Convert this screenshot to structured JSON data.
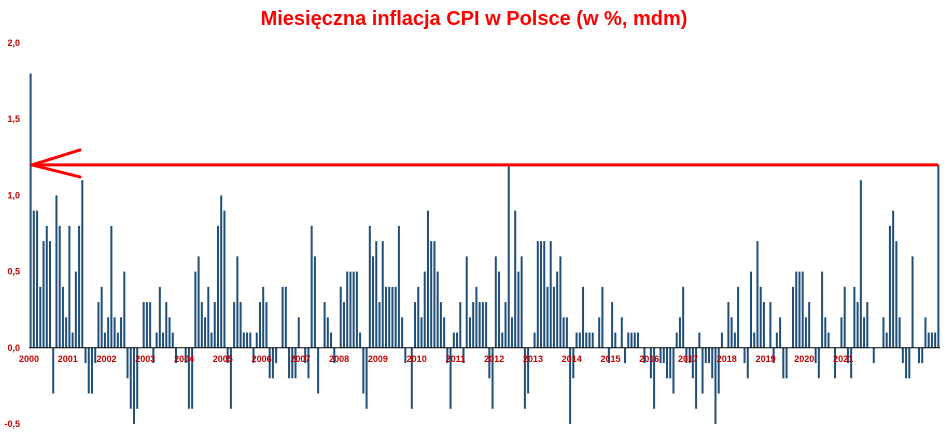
{
  "colors": {
    "bar": "#1F4E79",
    "title": "#FF0000",
    "tick_labels": "#C00000",
    "arrow": "#FF0000",
    "axis": "#000000"
  },
  "chart_data": {
    "type": "bar",
    "title": "Miesięczna inflacja CPI w Polsce (w %, mdm)",
    "xlabel": "",
    "ylabel": "",
    "ylim": [
      -0.5,
      2.0
    ],
    "y_ticks": [
      "2,0",
      "1,5",
      "1,0",
      "0,5",
      "0,0",
      "-0,5"
    ],
    "y_tick_values": [
      2.0,
      1.5,
      1.0,
      0.5,
      0.0,
      -0.5
    ],
    "x_tick_labels": [
      "2000",
      "2001",
      "2002",
      "2003",
      "2004",
      "2005",
      "2006",
      "2007",
      "2008",
      "2009",
      "2010",
      "2011",
      "2012",
      "2013",
      "2014",
      "2015",
      "2016",
      "2017",
      "2018",
      "2019",
      "2020",
      "2021"
    ],
    "grid": false,
    "legend": "none",
    "annotation": {
      "type": "horizontal-arrow",
      "y_value": 1.2
    },
    "series": [
      {
        "values": [
          1.8,
          0.9,
          0.9,
          0.4,
          0.7,
          0.8,
          0.7,
          -0.3,
          1.0,
          0.8,
          0.4,
          0.2,
          0.8,
          0.1,
          0.5,
          0.8,
          1.1,
          -0.1,
          -0.3,
          -0.3,
          -0.1,
          0.3,
          0.4,
          0.1,
          0.2,
          0.8,
          0.2,
          0.1,
          0.2,
          0.5,
          -0.2,
          -0.4,
          -0.5,
          -0.4,
          0.0,
          0.3,
          0.3,
          0.3,
          -0.1,
          0.1,
          0.4,
          0.1,
          0.3,
          0.2,
          0.1,
          -0.1,
          0.0,
          0.0,
          -0.1,
          -0.4,
          -0.4,
          0.5,
          0.6,
          0.3,
          0.2,
          0.4,
          0.1,
          0.3,
          0.8,
          1.0,
          0.9,
          -0.1,
          -0.4,
          0.3,
          0.6,
          0.3,
          0.1,
          0.1,
          0.1,
          -0.1,
          0.1,
          0.3,
          0.4,
          0.3,
          -0.2,
          -0.2,
          -0.1,
          0.0,
          0.4,
          0.4,
          -0.2,
          -0.2,
          -0.2,
          0.2,
          0.0,
          -0.1,
          -0.2,
          0.8,
          0.6,
          -0.3,
          0.0,
          0.3,
          0.2,
          0.1,
          -0.1,
          0.0,
          0.4,
          0.3,
          0.5,
          0.5,
          0.5,
          0.5,
          0.1,
          -0.3,
          -0.4,
          0.8,
          0.6,
          0.7,
          0.3,
          0.7,
          0.4,
          0.4,
          0.4,
          0.4,
          0.8,
          0.2,
          -0.1,
          0.0,
          -0.4,
          0.3,
          0.4,
          0.2,
          0.5,
          0.9,
          0.7,
          0.7,
          0.5,
          0.3,
          0.2,
          -0.1,
          -0.4,
          0.1,
          0.1,
          0.3,
          -0.1,
          0.6,
          0.2,
          0.3,
          0.4,
          0.3,
          0.3,
          0.3,
          -0.2,
          -0.4,
          0.6,
          0.5,
          0.1,
          0.3,
          1.2,
          0.2,
          0.9,
          0.5,
          0.6,
          -0.4,
          -0.3,
          0.0,
          0.1,
          0.7,
          0.7,
          0.7,
          0.4,
          0.7,
          0.4,
          0.5,
          0.6,
          0.2,
          0.2,
          -0.5,
          -0.2,
          0.1,
          0.1,
          0.4,
          0.1,
          0.1,
          0.1,
          0.0,
          0.2,
          0.4,
          0.0,
          -0.1,
          0.3,
          0.1,
          0.0,
          0.2,
          -0.1,
          0.1,
          0.1,
          0.1,
          0.1,
          0.0,
          -0.1,
          0.0,
          -0.2,
          -0.4,
          0.0,
          -0.1,
          -0.1,
          -0.2,
          -0.2,
          -0.3,
          0.1,
          0.2,
          0.4,
          -0.1,
          -0.1,
          -0.2,
          -0.4,
          0.1,
          -0.3,
          -0.1,
          -0.1,
          -0.2,
          -0.5,
          -0.3,
          0.1,
          0.0,
          0.3,
          0.2,
          0.1,
          0.4,
          0.0,
          -0.1,
          -0.2,
          0.5,
          0.1,
          0.7,
          0.4,
          0.3,
          0.0,
          0.3,
          -0.1,
          0.1,
          0.2,
          -0.2,
          -0.2,
          0.0,
          0.4,
          0.5,
          0.5,
          0.5,
          0.2,
          0.3,
          0.0,
          -0.1,
          -0.2,
          0.5,
          0.2,
          0.1,
          0.0,
          -0.2,
          0.0,
          0.2,
          0.4,
          -0.1,
          -0.2,
          0.4,
          0.3,
          1.1,
          0.2,
          0.3,
          0.0,
          -0.1,
          0.0,
          0.0,
          0.2,
          0.1,
          0.8,
          0.9,
          0.7,
          0.2,
          -0.1,
          -0.2,
          -0.2,
          0.6,
          0.0,
          -0.1,
          -0.1,
          0.2,
          0.1,
          0.1,
          0.1,
          1.2
        ]
      }
    ]
  }
}
